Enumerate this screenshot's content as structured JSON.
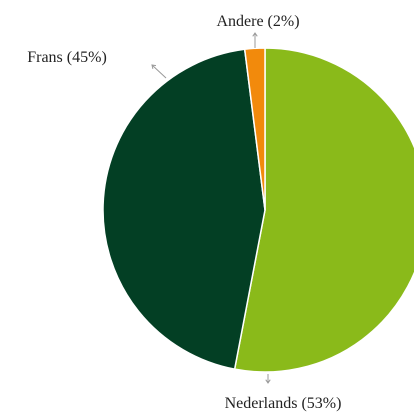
{
  "chart_data": {
    "type": "pie",
    "categories": [
      "Nederlands",
      "Frans",
      "Andere"
    ],
    "values": [
      53,
      45,
      2
    ],
    "value_labels": [
      "(53%)",
      "(45%)",
      "(2%)"
    ],
    "colors": [
      "#8aba1a",
      "#033f24",
      "#f28a0c"
    ]
  }
}
